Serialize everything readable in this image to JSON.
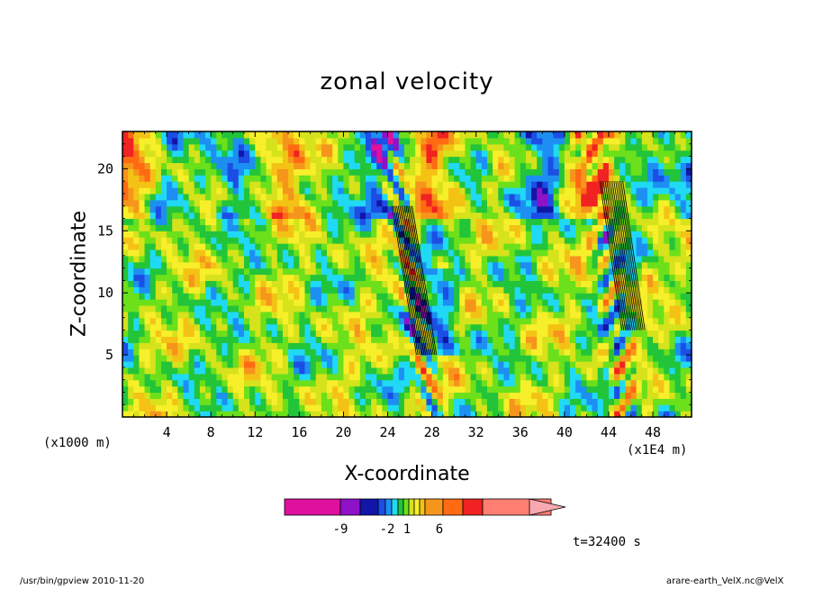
{
  "chart_data": {
    "type": "heatmap",
    "title": "zonal velocity",
    "xlabel": "X-coordinate",
    "ylabel": "Z-coordinate",
    "x_unit_left": "(x1000 m)",
    "x_unit_right": "(x1E4 m)",
    "xlim": [
      0,
      51.5
    ],
    "ylim": [
      0,
      23
    ],
    "xticks": [
      4,
      8,
      12,
      16,
      20,
      24,
      28,
      32,
      36,
      40,
      44,
      48
    ],
    "yticks": [
      5,
      10,
      15,
      20
    ],
    "colorbar": {
      "colors": [
        "#e0109f",
        "#8d12c8",
        "#1116a8",
        "#1c4ee6",
        "#1d8ff2",
        "#20d9f5",
        "#22c43a",
        "#6be01b",
        "#d6e21b",
        "#f7ef2a",
        "#f4c215",
        "#f6951c",
        "#ff6a13",
        "#f02222",
        "#ff7f73"
      ],
      "tick_labels": [
        "-9",
        "-2",
        "1",
        "6"
      ]
    },
    "time_label": "t=32400 s"
  },
  "footer": {
    "left": "/usr/bin/gpview   2010-11-20",
    "right": "arare-earth_VelX.nc@VelX"
  }
}
